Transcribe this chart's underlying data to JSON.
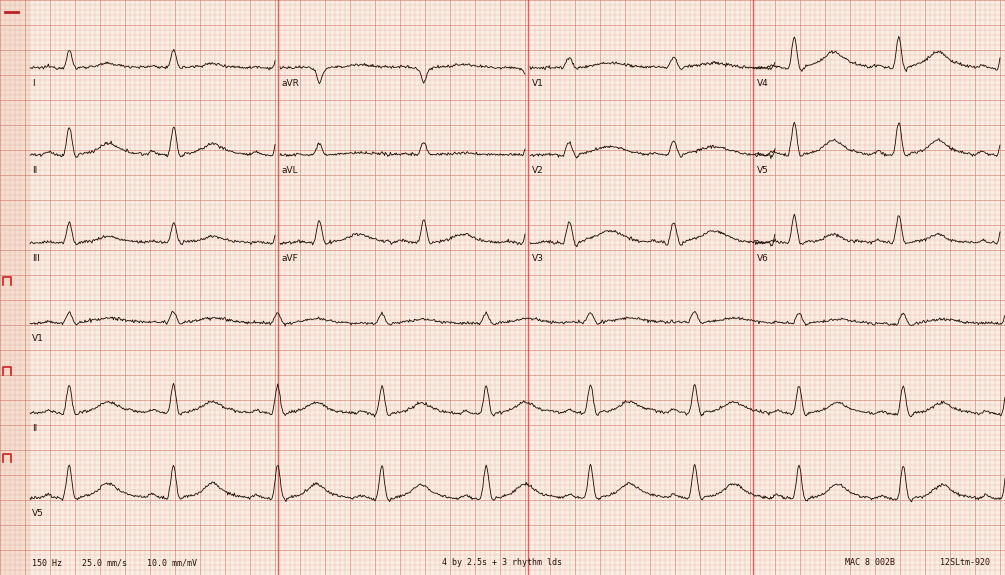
{
  "paper_color": "#faeee4",
  "paper_color_left": "#f5ddd0",
  "grid_minor_color": "#e8b0a0",
  "grid_major_color": "#cc6655",
  "ecg_color": "#1a0a00",
  "label_color": "#2a1008",
  "fig_width": 10.05,
  "fig_height": 5.75,
  "dpi": 100,
  "bottom_text_left": "150 Hz    25.0 mm/s    10.0 mm/mV",
  "bottom_text_center": "4 by 2.5s + 3 rhythm lds",
  "bottom_text_right": "MAC 8 002B         12SLtm-920",
  "top_marker_color": "#bb2222",
  "cal_marker_color": "#cc2222",
  "separator_color": "#cc4444"
}
